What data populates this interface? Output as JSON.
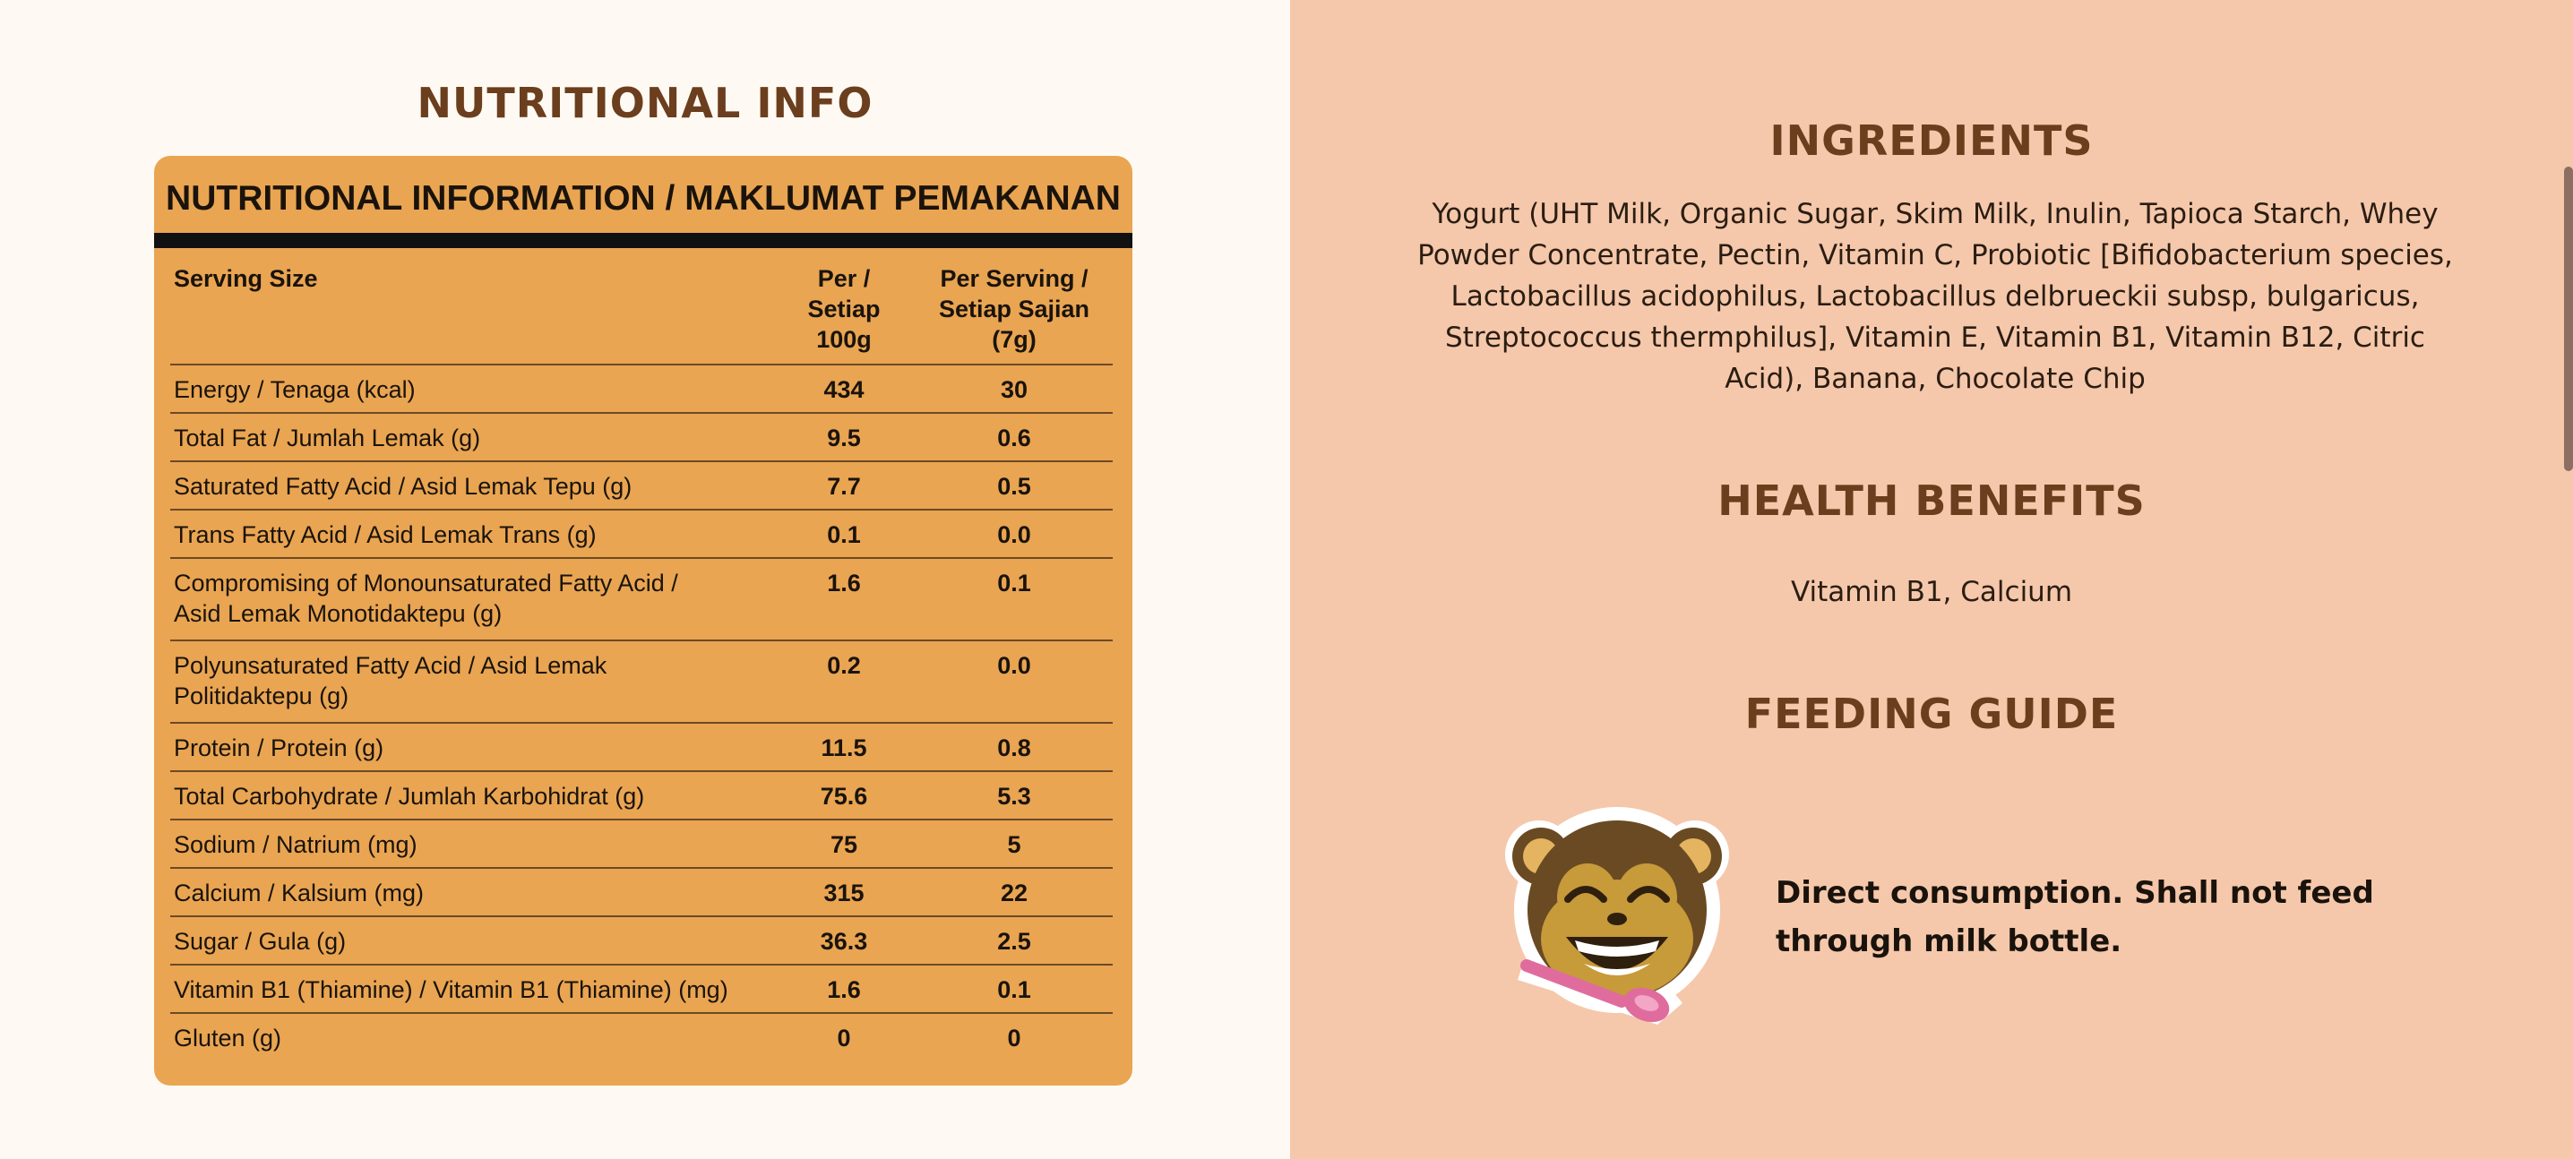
{
  "nutritional_info": {
    "heading": "NUTRITIONAL INFO",
    "label": {
      "title": "NUTRITIONAL INFORMATION / MAKLUMAT PEMAKANAN",
      "header": {
        "name": "Serving Size",
        "col1": "Per /\nSetiap\n100g",
        "col2": "Per Serving /\nSetiap Sajian\n(7g)"
      },
      "rows": [
        {
          "name": "Energy / Tenaga (kcal)",
          "per100g": "434",
          "perServing": "30"
        },
        {
          "name": "Total Fat / Jumlah Lemak (g)",
          "per100g": "9.5",
          "perServing": "0.6"
        },
        {
          "name": "Saturated Fatty Acid / Asid Lemak Tepu (g)",
          "per100g": "7.7",
          "perServing": "0.5"
        },
        {
          "name": "Trans Fatty Acid / Asid Lemak Trans (g)",
          "per100g": "0.1",
          "perServing": "0.0"
        },
        {
          "name": "Compromising of Monounsaturated Fatty Acid /\nAsid Lemak Monotidaktepu (g)",
          "per100g": "1.6",
          "perServing": "0.1"
        },
        {
          "name": "Polyunsaturated Fatty Acid / Asid Lemak\nPolitidaktepu (g)",
          "per100g": "0.2",
          "perServing": "0.0"
        },
        {
          "name": "Protein / Protein (g)",
          "per100g": "11.5",
          "perServing": "0.8"
        },
        {
          "name": "Total Carbohydrate / Jumlah Karbohidrat (g)",
          "per100g": "75.6",
          "perServing": "5.3"
        },
        {
          "name": "Sodium / Natrium (mg)",
          "per100g": "75",
          "perServing": "5"
        },
        {
          "name": "Calcium / Kalsium (mg)",
          "per100g": "315",
          "perServing": "22"
        },
        {
          "name": "Sugar / Gula (g)",
          "per100g": "36.3",
          "perServing": "2.5"
        },
        {
          "name": "Vitamin B1 (Thiamine) / Vitamin B1 (Thiamine) (mg)",
          "per100g": "1.6",
          "perServing": "0.1"
        },
        {
          "name": "Gluten (g)",
          "per100g": "0",
          "perServing": "0"
        }
      ]
    }
  },
  "ingredients": {
    "heading": "INGREDIENTS",
    "text": "Yogurt (UHT Milk, Organic Sugar, Skim Milk, Inulin, Tapioca Starch, Whey Powder Concentrate, Pectin, Vitamin C, Probiotic [Bifidobacterium species, Lactobacillus acidophilus, Lactobacillus delbrueckii subsp, bulgaricus, Streptococcus thermphilus], Vitamin E, Vitamin B1, Vitamin B12, Citric Acid), Banana, Chocolate Chip"
  },
  "health_benefits": {
    "heading": "HEALTH BENEFITS",
    "text": "Vitamin B1, Calcium"
  },
  "feeding_guide": {
    "heading": "FEEDING GUIDE",
    "icon": "monkey-with-spoon-icon",
    "text": "Direct consumption. Shall not feed through milk bottle."
  },
  "colors": {
    "left_background": "#fefaf3",
    "right_background": "#f5c8ab",
    "heading": "#6b3e1e",
    "label_background": "#e9a552"
  }
}
